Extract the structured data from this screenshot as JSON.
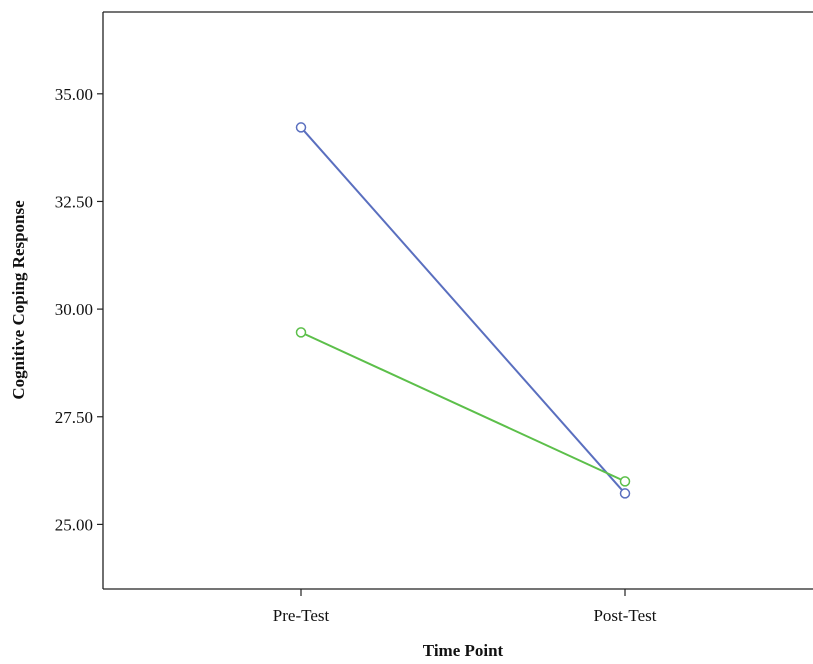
{
  "chart_data": {
    "type": "line",
    "title": "",
    "xlabel": "Time Point",
    "ylabel": "Cognitive Coping Response",
    "categories": [
      "Pre-Test",
      "Post-Test"
    ],
    "ylim": [
      23.5,
      36.9
    ],
    "yticks": [
      25.0,
      27.5,
      30.0,
      32.5,
      35.0
    ],
    "ytick_labels": [
      "25.00",
      "27.50",
      "30.00",
      "32.50",
      "35.00"
    ],
    "grid": false,
    "legend": "none",
    "series": [
      {
        "values": [
          34.22,
          25.72
        ],
        "color": "#5a6fbf",
        "marker": "open-circle"
      },
      {
        "values": [
          29.46,
          26.0
        ],
        "color": "#5cbf4a",
        "marker": "open-circle"
      }
    ]
  }
}
